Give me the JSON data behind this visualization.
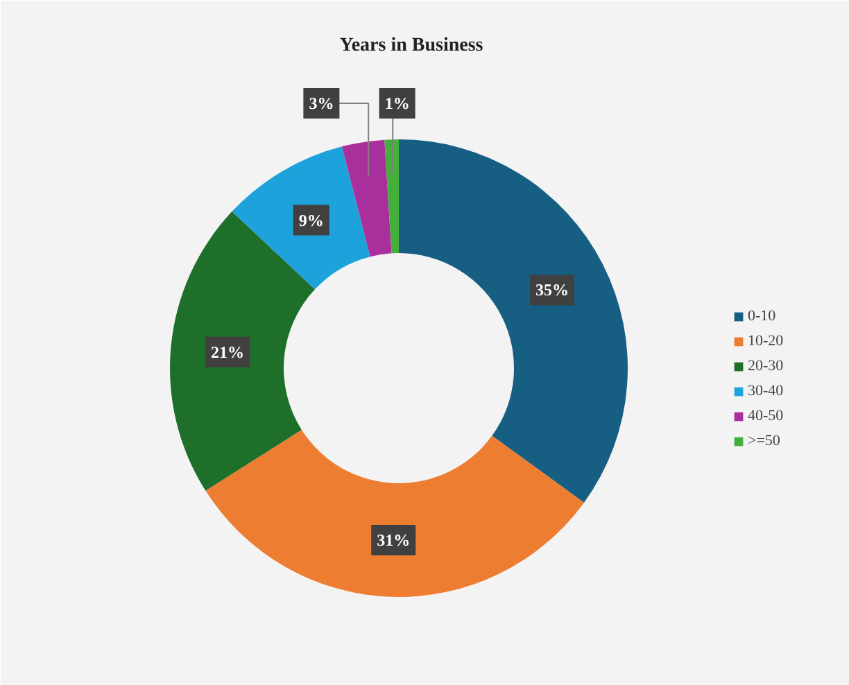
{
  "chart_data": {
    "type": "donut",
    "title": "Years in Business",
    "categories": [
      "0-10",
      "10-20",
      "20-30",
      "30-40",
      "40-50",
      ">=50"
    ],
    "values": [
      35,
      31,
      21,
      9,
      3,
      1
    ],
    "colors": [
      "#175e83",
      "#ed7d31",
      "#1e6f2a",
      "#1ea2dc",
      "#a9309c",
      "#44b03c"
    ],
    "value_labels": [
      "35%",
      "31%",
      "21%",
      "9%",
      "3%",
      "1%"
    ],
    "legend": "right"
  }
}
